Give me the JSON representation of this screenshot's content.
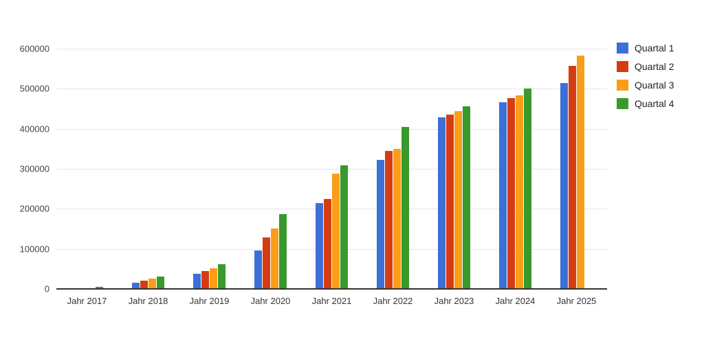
{
  "chart_data": {
    "type": "bar",
    "title": "",
    "categories": [
      "Jahr 2017",
      "Jahr 2018",
      "Jahr 2019",
      "Jahr 2020",
      "Jahr 2021",
      "Jahr 2022",
      "Jahr 2023",
      "Jahr 2024",
      "Jahr 2025"
    ],
    "series": [
      {
        "name": "Quartal 1",
        "color": "#3C6FD7",
        "values": [
          500,
          15000,
          37000,
          96000,
          215000,
          322000,
          428000,
          466000,
          515000
        ]
      },
      {
        "name": "Quartal 2",
        "color": "#D63C12",
        "values": [
          1000,
          20000,
          44000,
          129000,
          225000,
          345000,
          436000,
          476000,
          557000
        ]
      },
      {
        "name": "Quartal 3",
        "color": "#FA9D18",
        "values": [
          2000,
          25000,
          51000,
          151000,
          288000,
          350000,
          444000,
          483000,
          583000
        ]
      },
      {
        "name": "Quartal 4",
        "color": "#38992C",
        "values": [
          6000,
          31000,
          61000,
          187000,
          309000,
          405000,
          456000,
          500000,
          null
        ]
      }
    ],
    "xlabel": "",
    "ylabel": "",
    "ylim": [
      0,
      600000
    ],
    "ytick_interval": 100000,
    "yticks": [
      "0",
      "100000",
      "200000",
      "300000",
      "400000",
      "500000",
      "600000"
    ],
    "grid": true,
    "legend_position": "right",
    "colors": {
      "gridline": "#e6e6e6",
      "baseline": "#333333",
      "axis_text": "#444444",
      "category_text": "#333333",
      "legend_text": "#222222",
      "background": "#ffffff"
    }
  }
}
